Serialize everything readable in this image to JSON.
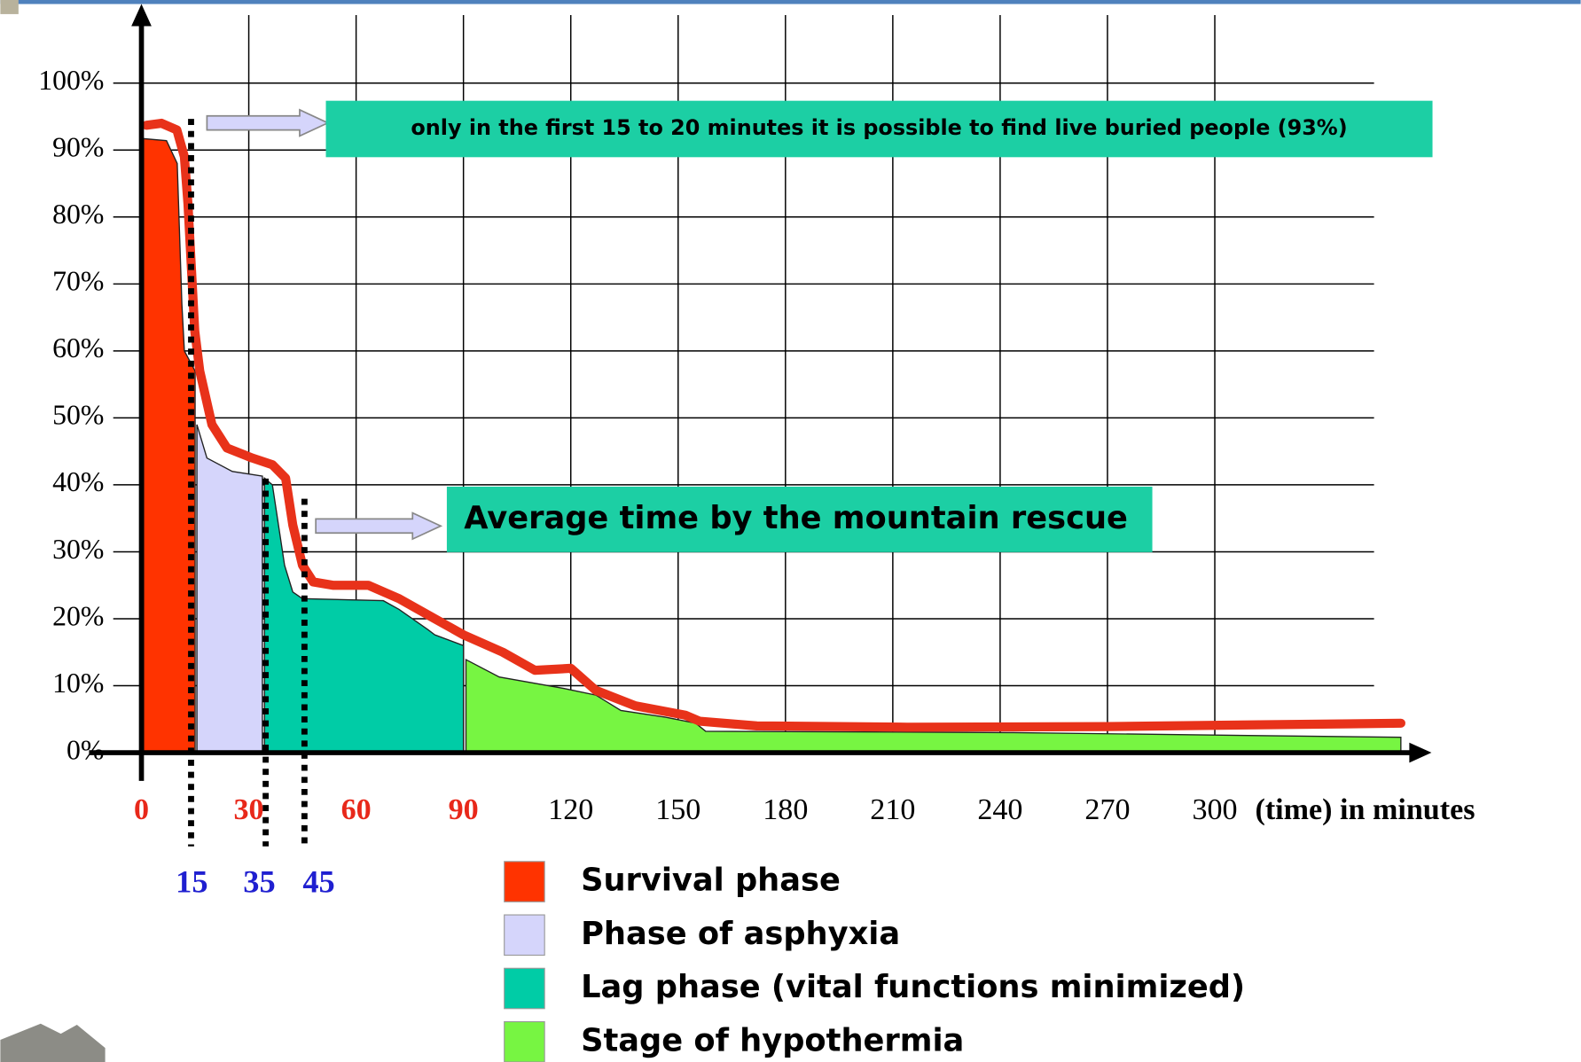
{
  "chart_data": {
    "type": "area",
    "x_label": "(time) in minutes",
    "xlim": [
      0,
      360
    ],
    "ylim": [
      0,
      110
    ],
    "xticks": [
      0,
      30,
      60,
      90,
      120,
      150,
      180,
      210,
      240,
      270,
      300
    ],
    "xtick_colors": [
      "#e8281a",
      "#e8281a",
      "#e8281a",
      "#e8281a",
      "#000000",
      "#000000",
      "#000000",
      "#000000",
      "#000000",
      "#000000",
      "#000000"
    ],
    "yticks": [
      {
        "value": 0,
        "label": "0%"
      },
      {
        "value": 10,
        "label": "10%"
      },
      {
        "value": 20,
        "label": "20%"
      },
      {
        "value": 30,
        "label": "30%"
      },
      {
        "value": 40,
        "label": "40%"
      },
      {
        "value": 50,
        "label": "50%"
      },
      {
        "value": 60,
        "label": "60%"
      },
      {
        "value": 70,
        "label": "70%"
      },
      {
        "value": 80,
        "label": "80%"
      },
      {
        "value": 90,
        "label": "90%"
      },
      {
        "value": 100,
        "label": "100%"
      }
    ],
    "grid": true,
    "phase_markers": {
      "values": [
        15,
        35,
        45
      ],
      "color": "#1f1fd0"
    },
    "series": [
      {
        "name": "Survival phase",
        "color": "#ff3300",
        "x": [
          0.6,
          7,
          10,
          11.3,
          12,
          15
        ],
        "values": [
          91.7,
          91.4,
          88,
          67,
          60,
          57
        ]
      },
      {
        "name": "Phase of asphyxia",
        "color": "#d5d5fb",
        "x": [
          15.5,
          18.3,
          25.4,
          33.8
        ],
        "values": [
          49,
          44,
          42,
          41.3
        ]
      },
      {
        "name": "Lag phase (vital functions minimized)",
        "color": "#00cca6",
        "x": [
          34.4,
          36.6,
          40,
          42.3,
          45,
          67.6,
          72,
          80,
          82,
          90
        ],
        "values": [
          41,
          40,
          28,
          24,
          23,
          22.7,
          21.4,
          18.4,
          17.6,
          16
        ]
      },
      {
        "name": "Stage of hypothermia",
        "color": "#77f542",
        "x": [
          90.7,
          100,
          118,
          127,
          134,
          146.5,
          154.9,
          157.7,
          242,
          352
        ],
        "values": [
          13.9,
          11.3,
          9.6,
          8.6,
          6.3,
          5.3,
          4.4,
          3.2,
          3,
          2.3
        ]
      }
    ],
    "curve": {
      "color": "#e8321a",
      "x": [
        1.4,
        5.6,
        9.9,
        12,
        13,
        14.9,
        16.3,
        19.7,
        23.9,
        31,
        36.6,
        40.3,
        42.3,
        45,
        48,
        53.5,
        63.4,
        72,
        82,
        90,
        101,
        110,
        120,
        127,
        138,
        152,
        156,
        172,
        214,
        270,
        352
      ],
      "values": [
        93.7,
        94,
        93,
        89,
        82,
        63,
        57,
        49,
        45.5,
        44,
        43,
        41,
        34,
        28,
        25.5,
        25,
        25,
        23,
        20,
        17.6,
        15,
        12.3,
        12.6,
        9.3,
        7,
        5.6,
        4.7,
        4,
        3.8,
        3.9,
        4.4
      ]
    },
    "annotations": [
      {
        "text": "only in the first 15 to 20 minutes it is possible to find live buried people (93%)",
        "color": "#1ccfa4"
      },
      {
        "text": "Average time by the mountain rescue",
        "color": "#1ccfa4"
      }
    ]
  }
}
